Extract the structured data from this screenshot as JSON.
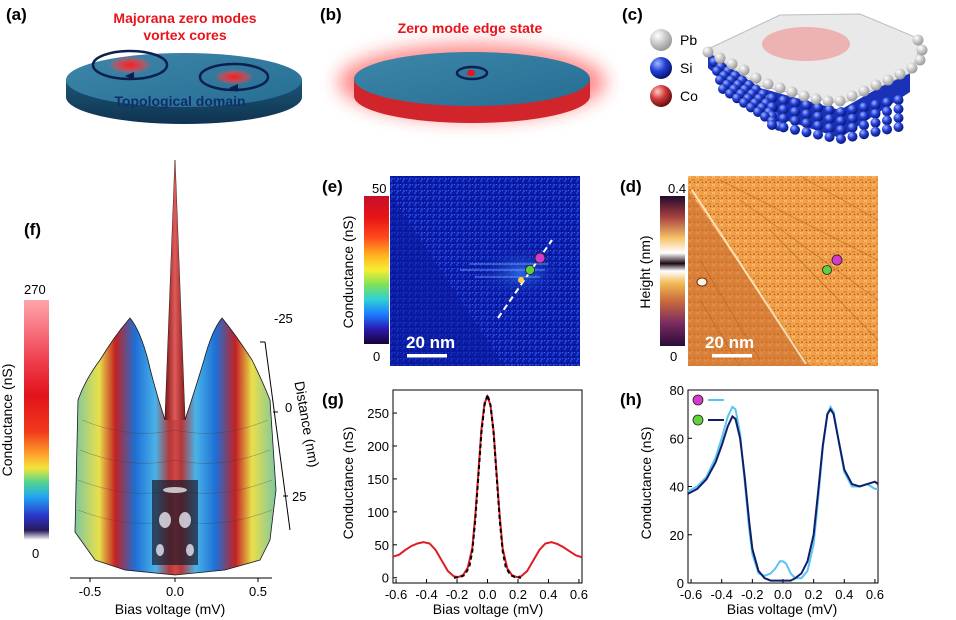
{
  "panels": {
    "a": {
      "label": "(a)",
      "title_line1": "Majorana zero modes",
      "title_line2": "vortex cores",
      "domain_label": "Topological domain"
    },
    "b": {
      "label": "(b)",
      "title": "Zero mode edge state"
    },
    "c": {
      "label": "(c)",
      "legend": [
        "Pb",
        "Si",
        "Co"
      ]
    },
    "d": {
      "label": "(d)",
      "colorbar_label": "Height (nm)",
      "cb_max": "0.4",
      "cb_min": "0",
      "scalebar": "20 nm"
    },
    "e": {
      "label": "(e)",
      "colorbar_label": "Conductance (nS)",
      "cb_max": "50",
      "cb_min": "0",
      "scalebar": "20 nm"
    },
    "f": {
      "label": "(f)",
      "colorbar_label": "Conductance (nS)",
      "cb_max": "270",
      "cb_min": "0",
      "xlabel": "Bias voltage (mV)",
      "xticks": [
        "-0.5",
        "0.0",
        "0.5"
      ],
      "distance_label": "Distance (nm)",
      "distance_ticks": [
        "-25",
        "0",
        "25"
      ]
    },
    "g": {
      "label": "(g)",
      "xlabel": "Bias voltage (mV)",
      "ylabel": "Conductance (nS)"
    },
    "h": {
      "label": "(h)",
      "xlabel": "Bias voltage (mV)",
      "ylabel": "Conductance (nS)"
    }
  },
  "colors": {
    "dark_teal": "#1a4b6e",
    "teal": "#2e6f93",
    "red": "#e01b22",
    "navy": "#0d1f6b",
    "light_blue": "#5cc3f2",
    "magenta": "#d53bc9",
    "green": "#5dd23b"
  },
  "chart_data": [
    {
      "id": "g",
      "type": "line",
      "xlabel": "Bias voltage (mV)",
      "ylabel": "Conductance (nS)",
      "xlim": [
        -0.62,
        0.62
      ],
      "ylim": [
        -8,
        285
      ],
      "xticks": [
        -0.6,
        -0.4,
        -0.2,
        0.0,
        0.2,
        0.4,
        0.6
      ],
      "yticks": [
        0,
        50,
        100,
        150,
        200,
        250
      ],
      "series": [
        {
          "name": "data",
          "color": "#e01b22",
          "style": "solid",
          "x": [
            -0.62,
            -0.58,
            -0.54,
            -0.5,
            -0.46,
            -0.42,
            -0.38,
            -0.34,
            -0.3,
            -0.26,
            -0.22,
            -0.19,
            -0.16,
            -0.13,
            -0.1,
            -0.08,
            -0.06,
            -0.04,
            -0.02,
            0.0,
            0.02,
            0.04,
            0.06,
            0.08,
            0.1,
            0.13,
            0.16,
            0.19,
            0.22,
            0.26,
            0.3,
            0.34,
            0.38,
            0.42,
            0.46,
            0.5,
            0.54,
            0.58,
            0.62
          ],
          "y": [
            32,
            35,
            42,
            48,
            52,
            54,
            52,
            42,
            26,
            10,
            2,
            1,
            4,
            15,
            45,
            95,
            160,
            225,
            265,
            275,
            262,
            222,
            158,
            94,
            44,
            14,
            4,
            1,
            2,
            10,
            26,
            42,
            52,
            54,
            51,
            46,
            40,
            34,
            31
          ]
        },
        {
          "name": "fit",
          "color": "#000000",
          "style": "dashed",
          "x": [
            -0.22,
            -0.18,
            -0.15,
            -0.12,
            -0.1,
            -0.08,
            -0.06,
            -0.04,
            -0.02,
            0.0,
            0.02,
            0.04,
            0.06,
            0.08,
            0.1,
            0.12,
            0.15,
            0.18,
            0.22
          ],
          "y": [
            0,
            1,
            4,
            16,
            40,
            88,
            155,
            220,
            262,
            278,
            262,
            220,
            155,
            88,
            40,
            16,
            4,
            1,
            0
          ]
        }
      ]
    },
    {
      "id": "h",
      "type": "line",
      "xlabel": "Bias voltage (mV)",
      "ylabel": "Conductance (nS)",
      "xlim": [
        -0.62,
        0.62
      ],
      "ylim": [
        0,
        80
      ],
      "xticks": [
        -0.6,
        -0.4,
        -0.2,
        0.0,
        0.2,
        0.4,
        0.6
      ],
      "yticks": [
        0,
        20,
        40,
        60,
        80
      ],
      "series": [
        {
          "name": "magenta-point",
          "marker_color": "#d53bc9",
          "color": "#5cc3f2",
          "x": [
            -0.62,
            -0.56,
            -0.5,
            -0.44,
            -0.4,
            -0.36,
            -0.33,
            -0.31,
            -0.28,
            -0.25,
            -0.22,
            -0.2,
            -0.16,
            -0.12,
            -0.08,
            -0.05,
            -0.02,
            0.0,
            0.02,
            0.05,
            0.08,
            0.12,
            0.16,
            0.2,
            0.23,
            0.26,
            0.29,
            0.31,
            0.33,
            0.36,
            0.4,
            0.45,
            0.5,
            0.55,
            0.6,
            0.62
          ],
          "y": [
            38,
            40,
            44,
            52,
            60,
            69,
            73,
            72,
            62,
            42,
            22,
            12,
            4,
            3,
            4,
            6,
            9,
            9,
            8,
            4,
            2,
            2,
            5,
            16,
            35,
            56,
            70,
            73,
            71,
            60,
            46,
            40,
            40,
            41,
            39,
            39
          ]
        },
        {
          "name": "green-point",
          "marker_color": "#5dd23b",
          "color": "#0d1f6b",
          "x": [
            -0.62,
            -0.56,
            -0.5,
            -0.44,
            -0.4,
            -0.36,
            -0.33,
            -0.31,
            -0.28,
            -0.25,
            -0.22,
            -0.2,
            -0.16,
            -0.12,
            -0.08,
            -0.05,
            -0.02,
            0.0,
            0.02,
            0.05,
            0.08,
            0.12,
            0.16,
            0.2,
            0.23,
            0.26,
            0.29,
            0.31,
            0.33,
            0.36,
            0.4,
            0.45,
            0.5,
            0.55,
            0.6,
            0.62
          ],
          "y": [
            37,
            39,
            43,
            50,
            57,
            65,
            69,
            68,
            60,
            44,
            25,
            14,
            5,
            2,
            1,
            1,
            1,
            1,
            1,
            1,
            2,
            4,
            9,
            20,
            38,
            57,
            70,
            72,
            70,
            60,
            47,
            41,
            40,
            41,
            42,
            41
          ]
        }
      ]
    }
  ]
}
